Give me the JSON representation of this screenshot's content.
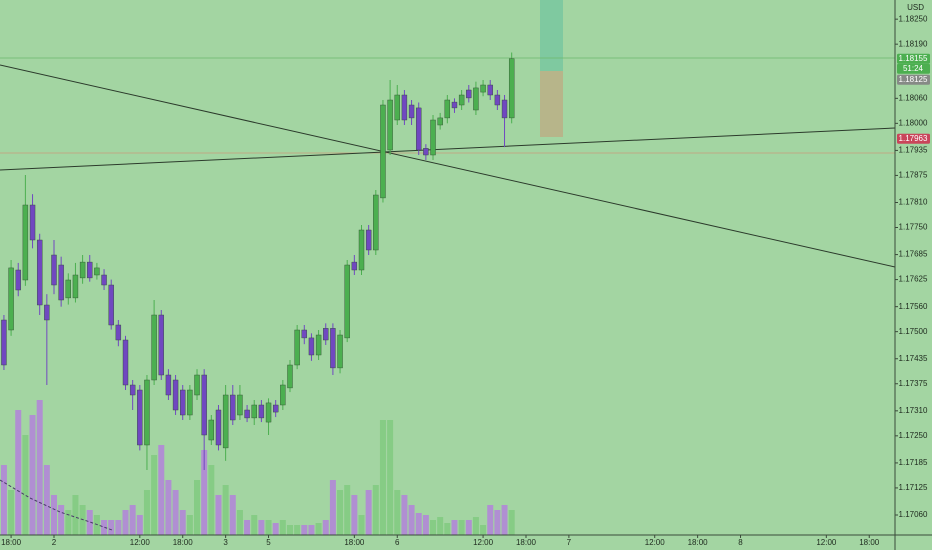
{
  "chart_data": {
    "type": "candlestick",
    "currency": "USD",
    "x": [
      -7,
      -6,
      -5,
      -4,
      -3,
      -2,
      -1,
      0,
      1,
      2,
      3,
      4,
      5,
      6,
      7,
      8,
      9,
      10,
      11,
      12,
      13,
      14,
      15,
      16,
      17,
      18,
      19,
      20,
      21,
      22,
      23,
      24,
      25,
      26,
      27,
      28,
      29,
      30,
      31,
      32,
      33,
      34,
      35,
      36,
      37,
      38,
      39,
      40,
      41,
      42,
      43,
      44,
      45,
      46,
      47,
      48,
      49,
      50,
      51,
      52,
      53,
      54,
      55,
      56,
      57,
      58,
      59,
      60,
      61,
      62,
      63,
      64
    ],
    "open": [
      1.17528,
      1.17504,
      1.17648,
      1.17624,
      1.17804,
      1.1772,
      1.17564,
      1.17684,
      1.1766,
      1.17581,
      1.17581,
      1.17629,
      1.17667,
      1.17636,
      1.17636,
      1.17612,
      1.17516,
      1.1748,
      1.17372,
      1.1736,
      1.17228,
      1.17384,
      1.1754,
      1.17396,
      1.17384,
      1.1736,
      1.173,
      1.17348,
      1.17396,
      1.1724,
      1.17312,
      1.17221,
      1.17348,
      1.173,
      1.17312,
      1.17293,
      1.17324,
      1.17283,
      1.17324,
      1.17324,
      1.17365,
      1.1742,
      1.17504,
      1.17485,
      1.17444,
      1.17508,
      1.17508,
      1.17413,
      1.17485,
      1.17667,
      1.17648,
      1.17744,
      1.17696,
      1.17821,
      1.17936,
      1.18008,
      1.18068,
      1.18044,
      1.18037,
      1.1794,
      1.17924,
      1.17996,
      1.18013,
      1.18051,
      1.18044,
      1.1808,
      1.18032,
      1.18075,
      1.18092,
      1.18068,
      1.18056,
      1.18013
    ],
    "high": [
      1.1754,
      1.17672,
      1.17665,
      1.17876,
      1.1783,
      1.17735,
      1.1759,
      1.1772,
      1.1768,
      1.1764,
      1.17665,
      1.17684,
      1.17684,
      1.17665,
      1.1765,
      1.17625,
      1.17528,
      1.1749,
      1.17384,
      1.17372,
      1.17396,
      1.17576,
      1.17552,
      1.1741,
      1.17396,
      1.17372,
      1.17372,
      1.1741,
      1.1741,
      1.173,
      1.17324,
      1.17372,
      1.17372,
      1.17372,
      1.17324,
      1.17336,
      1.17336,
      1.1734,
      1.17336,
      1.17384,
      1.17432,
      1.17516,
      1.17516,
      1.17496,
      1.17504,
      1.1752,
      1.1752,
      1.17504,
      1.17672,
      1.17684,
      1.17756,
      1.17756,
      1.1784,
      1.18056,
      1.18104,
      1.18092,
      1.1808,
      1.18056,
      1.1805,
      1.1795,
      1.1802,
      1.18025,
      1.18068,
      1.1806,
      1.1808,
      1.18092,
      1.181,
      1.18104,
      1.18104,
      1.1808,
      1.18068,
      1.1817
    ],
    "low": [
      1.17408,
      1.1749,
      1.17585,
      1.1761,
      1.177,
      1.1754,
      1.17372,
      1.1759,
      1.1756,
      1.17565,
      1.1757,
      1.17615,
      1.1762,
      1.17625,
      1.176,
      1.17505,
      1.17465,
      1.1736,
      1.17312,
      1.17215,
      1.17168,
      1.17372,
      1.17384,
      1.17336,
      1.173,
      1.17288,
      1.17288,
      1.17336,
      1.17168,
      1.17228,
      1.17215,
      1.1719,
      1.17276,
      1.17288,
      1.17283,
      1.17276,
      1.17283,
      1.17252,
      1.17295,
      1.17312,
      1.17355,
      1.1741,
      1.1747,
      1.1743,
      1.17432,
      1.17468,
      1.17396,
      1.174,
      1.17475,
      1.17636,
      1.17636,
      1.17684,
      1.17684,
      1.1781,
      1.17924,
      1.17996,
      1.17996,
      1.17996,
      1.17924,
      1.17912,
      1.17912,
      1.17985,
      1.18,
      1.18025,
      1.18032,
      1.1805,
      1.1802,
      1.18065,
      1.18056,
      1.18032,
      1.17943,
      1.18
    ],
    "close": [
      1.1742,
      1.17653,
      1.176,
      1.17804,
      1.1772,
      1.17564,
      1.17528,
      1.17612,
      1.17576,
      1.17624,
      1.17636,
      1.17667,
      1.17629,
      1.17653,
      1.17612,
      1.17516,
      1.1748,
      1.17372,
      1.17348,
      1.17228,
      1.17384,
      1.1754,
      1.17396,
      1.17348,
      1.17312,
      1.173,
      1.1736,
      1.17396,
      1.17252,
      1.17288,
      1.17228,
      1.17348,
      1.17288,
      1.17348,
      1.17293,
      1.17324,
      1.17293,
      1.17329,
      1.17307,
      1.17372,
      1.1742,
      1.17504,
      1.17485,
      1.17444,
      1.17492,
      1.1748,
      1.17413,
      1.17492,
      1.1766,
      1.17648,
      1.17744,
      1.17696,
      1.17828,
      1.18044,
      1.18056,
      1.18068,
      1.18008,
      1.18013,
      1.17936,
      1.17924,
      1.18008,
      1.18013,
      1.18056,
      1.18037,
      1.18068,
      1.18061,
      1.18085,
      1.18092,
      1.18068,
      1.18044,
      1.18013,
      1.18155
    ],
    "volume": [
      70,
      45,
      125,
      100,
      120,
      135,
      70,
      40,
      30,
      25,
      40,
      30,
      25,
      20,
      15,
      15,
      15,
      25,
      30,
      20,
      45,
      80,
      90,
      55,
      45,
      25,
      20,
      55,
      85,
      70,
      40,
      50,
      40,
      25,
      15,
      20,
      15,
      15,
      12,
      15,
      10,
      10,
      10,
      10,
      12,
      15,
      55,
      45,
      50,
      40,
      20,
      45,
      50,
      115,
      115,
      45,
      40,
      30,
      22,
      20,
      15,
      18,
      12,
      15,
      15,
      15,
      18,
      10,
      30,
      25,
      30,
      25
    ],
    "volume_ylim": [
      0,
      400
    ],
    "up_color": "#4caf50",
    "down_color": "#7048c0",
    "volume_up_color": "#86cc85",
    "volume_down_color": "#b08fd2",
    "xlim": [
      -7.55,
      117.6
    ],
    "xticks": [
      {
        "value": -6,
        "label": "18:00"
      },
      {
        "value": 0,
        "label": "2"
      },
      {
        "value": 12,
        "label": "12:00"
      },
      {
        "value": 18,
        "label": "18:00"
      },
      {
        "value": 24,
        "label": "3"
      },
      {
        "value": 30,
        "label": "5"
      },
      {
        "value": 42,
        "label": "18:00"
      },
      {
        "value": 48,
        "label": "6"
      },
      {
        "value": 60,
        "label": "12:00"
      },
      {
        "value": 66,
        "label": "18:00"
      },
      {
        "value": 72,
        "label": "7"
      },
      {
        "value": 84,
        "label": "12:00"
      },
      {
        "value": 90,
        "label": "18:00"
      },
      {
        "value": 96,
        "label": "8"
      },
      {
        "value": 108,
        "label": "12:00"
      },
      {
        "value": 114,
        "label": "18:00"
      }
    ],
    "ylim": [
      1.17012,
      1.18296
    ],
    "yticks": [
      {
        "value": 1.1825,
        "label": "1.18250"
      },
      {
        "value": 1.1819,
        "label": "1.18190"
      },
      {
        "value": 1.1806,
        "label": "1.18060"
      },
      {
        "value": 1.18,
        "label": "1.18000"
      },
      {
        "value": 1.17935,
        "label": "1.17935"
      },
      {
        "value": 1.17875,
        "label": "1.17875"
      },
      {
        "value": 1.1781,
        "label": "1.17810"
      },
      {
        "value": 1.1775,
        "label": "1.17750"
      },
      {
        "value": 1.17685,
        "label": "1.17685"
      },
      {
        "value": 1.17625,
        "label": "1.17625"
      },
      {
        "value": 1.1756,
        "label": "1.17560"
      },
      {
        "value": 1.175,
        "label": "1.17500"
      },
      {
        "value": 1.17435,
        "label": "1.17435"
      },
      {
        "value": 1.17375,
        "label": "1.17375"
      },
      {
        "value": 1.1731,
        "label": "1.17310"
      },
      {
        "value": 1.1725,
        "label": "1.17250"
      },
      {
        "value": 1.17185,
        "label": "1.17185"
      },
      {
        "value": 1.17125,
        "label": "1.17125"
      },
      {
        "value": 1.1706,
        "label": "1.17060"
      }
    ],
    "last_price": 1.18155,
    "countdown": "51:24",
    "marker_price": 1.18125,
    "alert_price": 1.17963
  }
}
